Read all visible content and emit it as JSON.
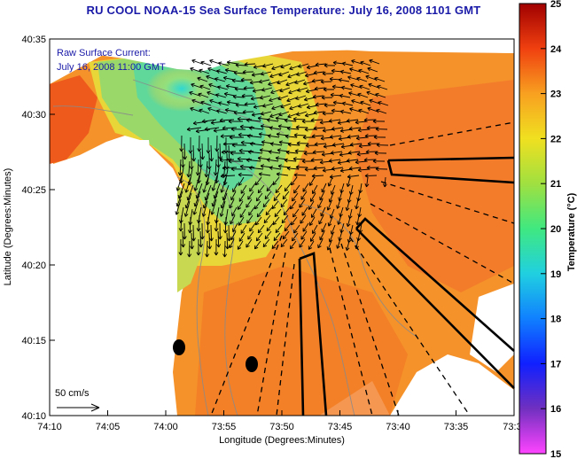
{
  "title": "RU COOL  NOAA-15  Sea Surface Temperature:  July 16, 2008 1101 GMT",
  "overlay": {
    "line1": "Raw Surface Current:",
    "line2": "July 16, 2008 11:00 GMT",
    "scale_label": "50 cm/s"
  },
  "axes": {
    "xlabel": "Longitude (Degrees:Minutes)",
    "ylabel": "Latitude (Degrees:Minutes)",
    "xticks": [
      "74:10",
      "74:05",
      "74:00",
      "73:55",
      "73:50",
      "73:45",
      "73:40",
      "73:35",
      "73:3"
    ],
    "yticks": [
      "40:35",
      "40:30",
      "40:25",
      "40:20",
      "40:15",
      "40:10"
    ]
  },
  "colorbar": {
    "label": "Temperature (°C)",
    "ticks": [
      "25",
      "24",
      "23",
      "22",
      "21",
      "20",
      "19",
      "18",
      "17",
      "16",
      "15"
    ],
    "min": 15,
    "max": 25
  },
  "colors": {
    "title": "#1a1aa8",
    "land": "#ffffff",
    "warm": "#f28a2a",
    "cool": "#7fd28a"
  }
}
